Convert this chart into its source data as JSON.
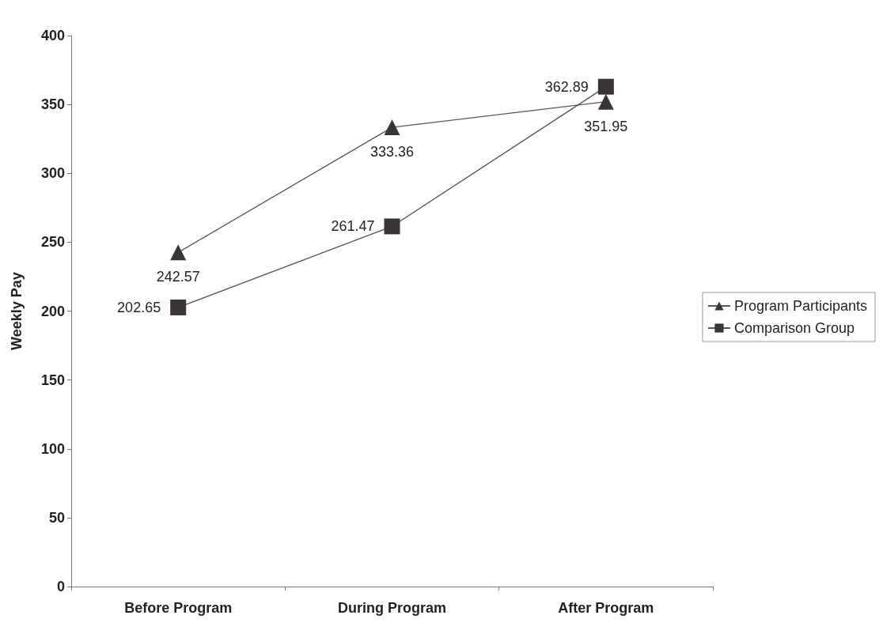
{
  "chart_data": {
    "type": "line",
    "ylabel": "Weekly Pay",
    "categories": [
      "Before Program",
      "During Program",
      "After Program"
    ],
    "series": [
      {
        "name": "Program Participants",
        "color": "#3a3338",
        "marker": "triangle",
        "values": [
          242.57,
          333.36,
          351.95
        ]
      },
      {
        "name": "Comparison Group",
        "color": "#3a3338",
        "marker": "square",
        "values": [
          202.65,
          261.47,
          362.89
        ]
      }
    ],
    "ylim": [
      0,
      400
    ],
    "yticks": [
      0,
      50,
      100,
      150,
      200,
      250,
      300,
      350,
      400
    ],
    "grid": false,
    "legend": "right",
    "data_labels": true
  }
}
